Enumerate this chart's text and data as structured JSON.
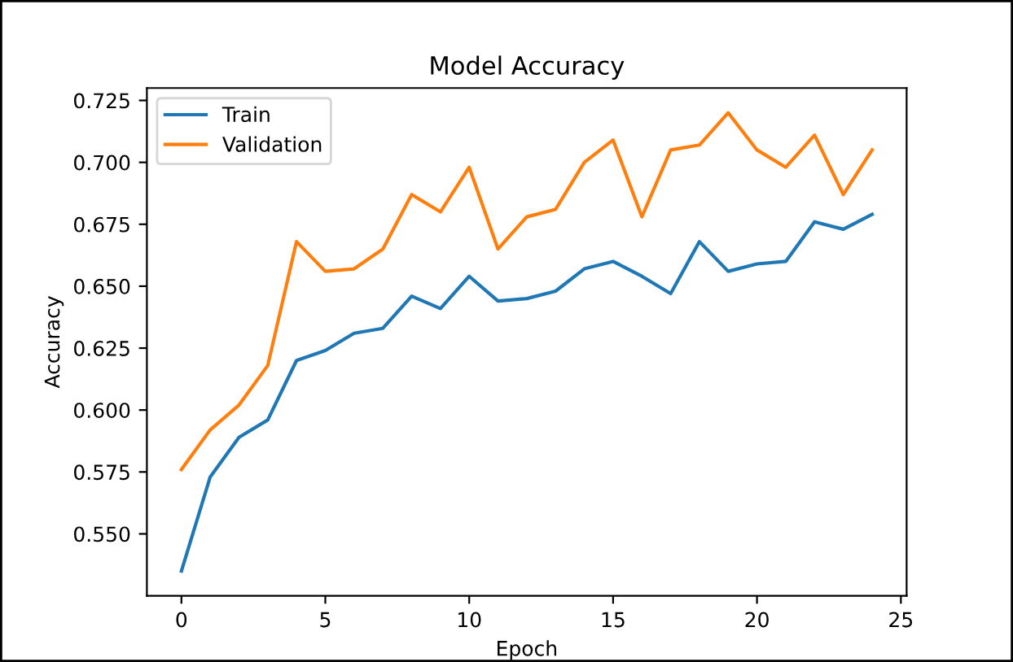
{
  "chart_data": {
    "type": "line",
    "title": "Model Accuracy",
    "xlabel": "Epoch",
    "ylabel": "Accuracy",
    "x": [
      0,
      1,
      2,
      3,
      4,
      5,
      6,
      7,
      8,
      9,
      10,
      11,
      12,
      13,
      14,
      15,
      16,
      17,
      18,
      19,
      20,
      21,
      22,
      23,
      24
    ],
    "series": [
      {
        "name": "Train",
        "color": "#1f77b4",
        "values": [
          0.535,
          0.573,
          0.589,
          0.596,
          0.62,
          0.624,
          0.631,
          0.633,
          0.646,
          0.641,
          0.654,
          0.644,
          0.645,
          0.648,
          0.657,
          0.66,
          0.654,
          0.647,
          0.668,
          0.656,
          0.659,
          0.66,
          0.676,
          0.673,
          0.679
        ]
      },
      {
        "name": "Validation",
        "color": "#ff7f0e",
        "values": [
          0.576,
          0.592,
          0.602,
          0.618,
          0.668,
          0.656,
          0.657,
          0.665,
          0.687,
          0.68,
          0.698,
          0.665,
          0.678,
          0.681,
          0.7,
          0.709,
          0.678,
          0.705,
          0.707,
          0.72,
          0.705,
          0.698,
          0.711,
          0.687,
          0.705
        ]
      }
    ],
    "xlim": [
      -1.2,
      25.2
    ],
    "xticks": [
      0,
      5,
      10,
      15,
      20,
      25
    ],
    "ylim": [
      0.525,
      0.73
    ],
    "yticks": [
      {
        "value": 0.55,
        "label": "0.550"
      },
      {
        "value": 0.575,
        "label": "0.575"
      },
      {
        "value": 0.6,
        "label": "0.600"
      },
      {
        "value": 0.625,
        "label": "0.625"
      },
      {
        "value": 0.65,
        "label": "0.650"
      },
      {
        "value": 0.675,
        "label": "0.675"
      },
      {
        "value": 0.7,
        "label": "0.700"
      },
      {
        "value": 0.725,
        "label": "0.725"
      }
    ],
    "grid": false,
    "legend": "top left",
    "marker": "none",
    "line_style": "solid"
  }
}
